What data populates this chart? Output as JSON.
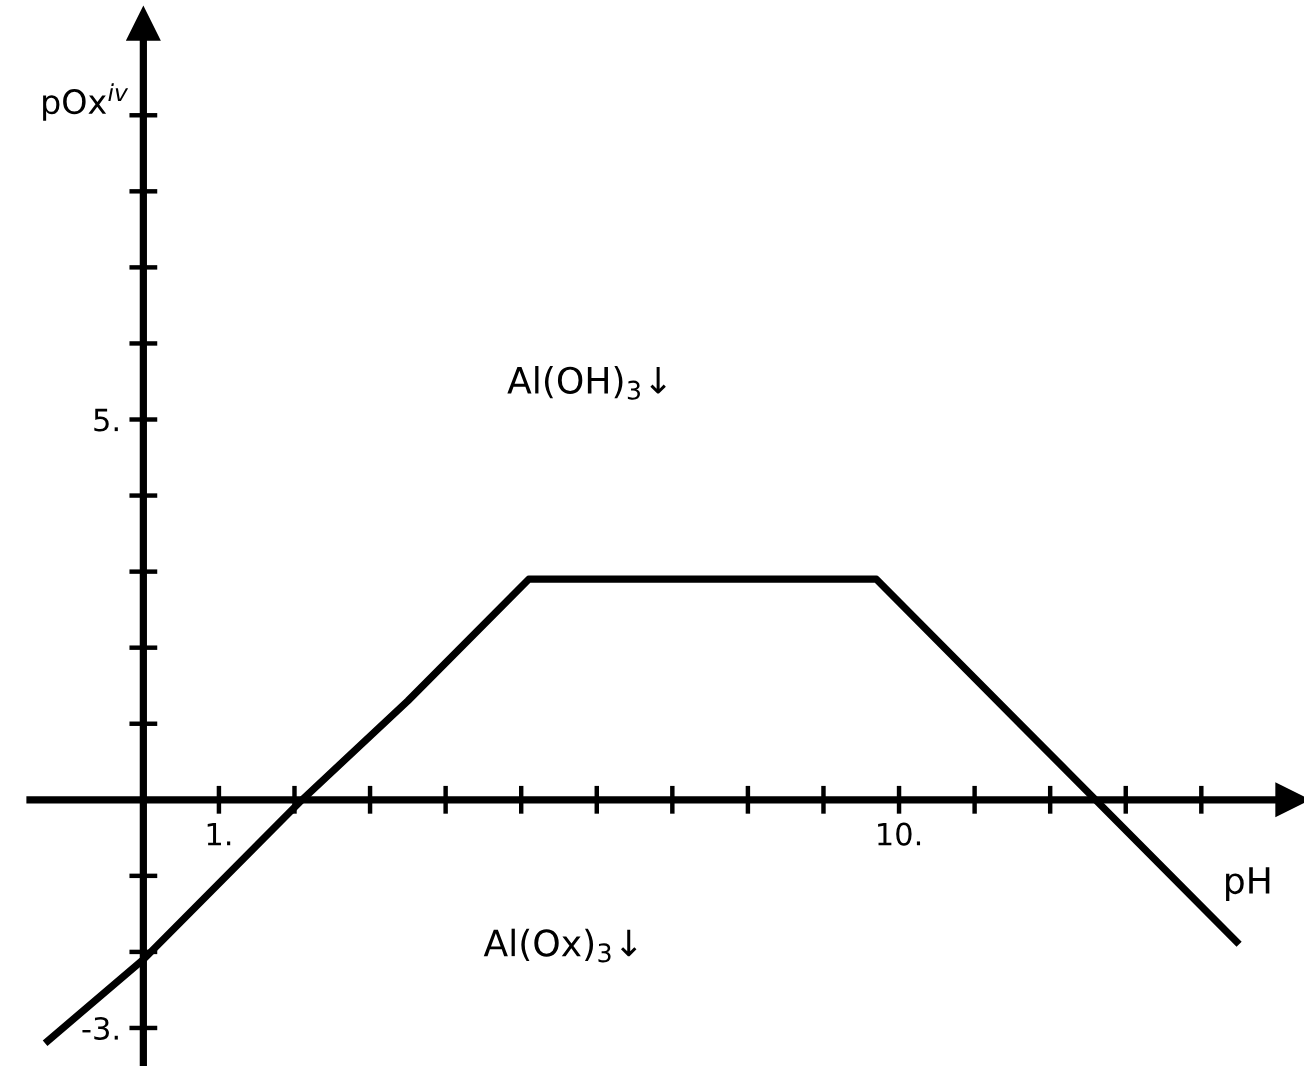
{
  "chart_data": {
    "type": "line",
    "xlabel": "pH",
    "ylabel": "pOx$^{iv}$",
    "x": [
      -1.3,
      0,
      2.1,
      3.5,
      5.1,
      9.7,
      12.3,
      14.5
    ],
    "series": [
      {
        "color": "#000000",
        "values": [
          -3.2,
          -2.1,
          0,
          1.3,
          2.9,
          2.9,
          0.3,
          -1.9
        ]
      }
    ],
    "xlim": [
      -1.5,
      15.2
    ],
    "ylim": [
      -3.5,
      10.2
    ],
    "xticks": [
      {
        "value": 1,
        "label": "1."
      },
      {
        "value": 2,
        "label": null
      },
      {
        "value": 3,
        "label": null
      },
      {
        "value": 4,
        "label": null
      },
      {
        "value": 5,
        "label": null
      },
      {
        "value": 6,
        "label": null
      },
      {
        "value": 7,
        "label": null
      },
      {
        "value": 8,
        "label": null
      },
      {
        "value": 9,
        "label": null
      },
      {
        "value": 10,
        "label": "10."
      },
      {
        "value": 11,
        "label": null
      },
      {
        "value": 12,
        "label": null
      },
      {
        "value": 13,
        "label": null
      },
      {
        "value": 14,
        "label": null
      }
    ],
    "yticks": [
      {
        "value": -3,
        "label": "-3."
      },
      {
        "value": -2,
        "label": null
      },
      {
        "value": -1,
        "label": null
      },
      {
        "value": 1,
        "label": null
      },
      {
        "value": 2,
        "label": null
      },
      {
        "value": 3,
        "label": null
      },
      {
        "value": 4,
        "label": null
      },
      {
        "value": 5,
        "label": "5."
      },
      {
        "value": 6,
        "label": null
      },
      {
        "value": 7,
        "label": null
      },
      {
        "value": 8,
        "label": null
      },
      {
        "value": 9,
        "label": null
      }
    ],
    "annotations": [
      "Al(OH)$_{3}$↓",
      "Al(Ox)$_{3}$↓"
    ]
  }
}
